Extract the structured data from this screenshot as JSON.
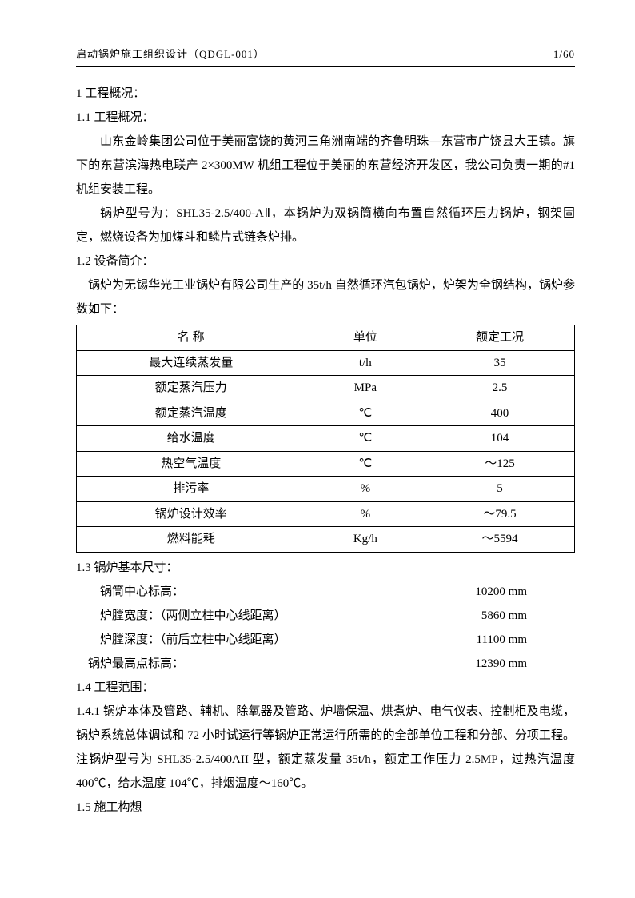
{
  "header": {
    "title": "启动锅炉施工组织设计（QDGL-001）",
    "page": "1/60"
  },
  "sections": {
    "s1": "1  工程概况：",
    "s11": "1.1 工程概况：",
    "p1": "山东金岭集团公司位于美丽富饶的黄河三角洲南端的齐鲁明珠—东营市广饶县大王镇。旗下的东营滨海热电联产 2×300MW 机组工程位于美丽的东营经济开发区，我公司负责一期的#1 机组安装工程。",
    "p2": "锅炉型号为：SHL35-2.5/400-AⅡ，本锅炉为双锅筒横向布置自然循环压力锅炉，钢架固定，燃烧设备为加煤斗和鳞片式链条炉排。",
    "s12": "1.2 设备简介：",
    "p3": "锅炉为无锡华光工业锅炉有限公司生产的 35t/h 自然循环汽包锅炉，炉架为全钢结构，锅炉参数如下：",
    "s13": "1.3 锅炉基本尺寸：",
    "s14": "1.4 工程范围：",
    "s141": "1.4.1 锅炉本体及管路、辅机、除氧器及管路、炉墙保温、烘煮炉、电气仪表、控制柜及电缆，锅炉系统总体调试和 72 小时试运行等锅炉正常运行所需的的全部单位工程和分部、分项工程。注锅炉型号为 SHL35-2.5/400AII 型，额定蒸发量 35t/h，额定工作压力 2.5MP，过热汽温度 400℃，给水温度 104℃，排烟温度～160℃。",
    "s15": "1.5 施工构想"
  },
  "table": {
    "headers": {
      "name": "名称",
      "unit": "单位",
      "val": "额定工况"
    },
    "name_col_display": "名    称",
    "rows": [
      {
        "name": "最大连续蒸发量",
        "unit": "t/h",
        "val": "35"
      },
      {
        "name": "额定蒸汽压力",
        "unit": "MPa",
        "val": "2.5"
      },
      {
        "name": "额定蒸汽温度",
        "unit": "℃",
        "val": "400"
      },
      {
        "name": "给水温度",
        "unit": "℃",
        "val": "104"
      },
      {
        "name": "热空气温度",
        "unit": "℃",
        "val": "～125"
      },
      {
        "name": "排污率",
        "unit": "%",
        "val": "5"
      },
      {
        "name": "锅炉设计效率",
        "unit": "%",
        "val": "～79.5"
      },
      {
        "name": "燃料能耗",
        "unit": "Kg/h",
        "val": "～5594"
      }
    ]
  },
  "dims": [
    {
      "label": "锅筒中心标高：",
      "value": "10200 mm"
    },
    {
      "label": "炉膛宽度：（两侧立柱中心线距离）",
      "value": "5860 mm"
    },
    {
      "label": "炉膛深度：（前后立柱中心线距离）",
      "value": "11100 mm"
    },
    {
      "label": "锅炉最高点标高：",
      "value": "12390 mm"
    }
  ]
}
